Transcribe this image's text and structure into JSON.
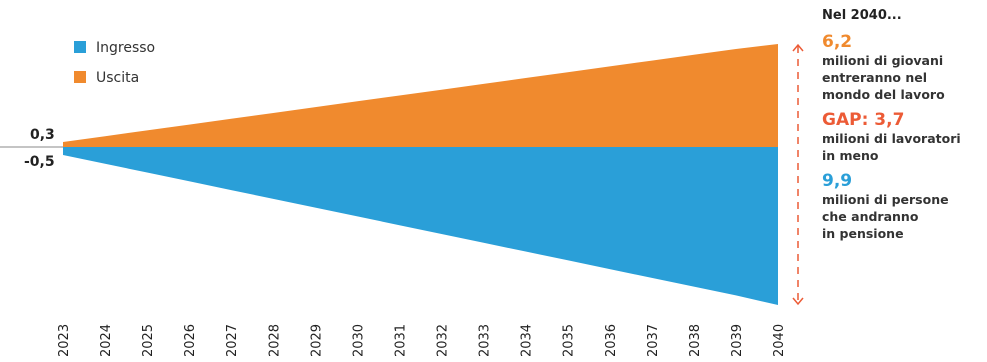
{
  "colors": {
    "ingresso": "#2a9fd8",
    "uscita": "#f08a2e",
    "gap": "#ec5b36",
    "axis": "#888888"
  },
  "chart_data": {
    "type": "area",
    "x": [
      "2023",
      "2024",
      "2025",
      "2026",
      "2027",
      "2028",
      "2029",
      "2030",
      "2031",
      "2032",
      "2033",
      "2034",
      "2035",
      "2036",
      "2037",
      "2038",
      "2039",
      "2040"
    ],
    "series": [
      {
        "name": "Ingresso",
        "values": [
          -0.5,
          -1.05,
          -1.6,
          -2.15,
          -2.7,
          -3.25,
          -3.8,
          -4.35,
          -4.9,
          -5.45,
          -6.0,
          -6.55,
          -7.1,
          -7.65,
          -8.2,
          -8.75,
          -9.3,
          -9.9
        ]
      },
      {
        "name": "Uscita",
        "values": [
          0.3,
          0.65,
          1.0,
          1.35,
          1.7,
          2.05,
          2.4,
          2.75,
          3.1,
          3.45,
          3.8,
          4.15,
          4.5,
          4.85,
          5.2,
          5.55,
          5.9,
          6.2
        ]
      }
    ],
    "axis_labels": {
      "top": "0,3",
      "bottom": "-0,5"
    },
    "ylim": [
      -10,
      6.5
    ],
    "legend": "top-left"
  },
  "annotation": {
    "title": "Nel 2040...",
    "value1": "6,2",
    "text1": "milioni di giovani\nentreranno nel\nmondo del lavoro",
    "gap": "GAP: 3,7",
    "gap_text": "milioni di lavoratori\nin meno",
    "value2": "9,9",
    "text2": "milioni di persone\nche andranno\nin pensione"
  }
}
